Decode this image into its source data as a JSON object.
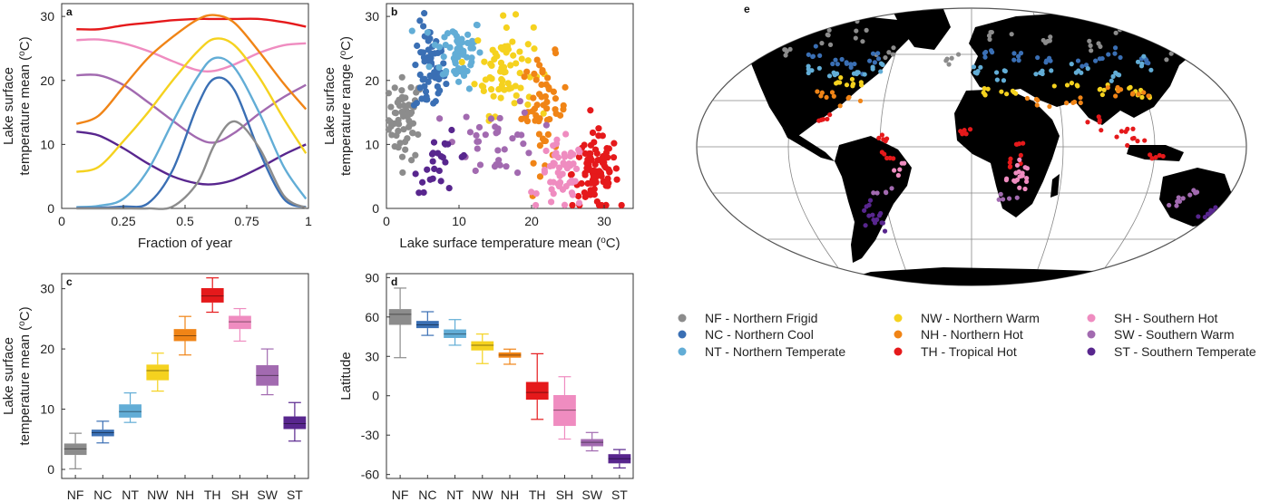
{
  "colors": {
    "NF": "#8c8c8c",
    "NC": "#3a6fb4",
    "NT": "#62add6",
    "NW": "#f5d21f",
    "NH": "#f08416",
    "TH": "#e5191b",
    "SH": "#ef8cc0",
    "SW": "#a26ab0",
    "ST": "#58268e"
  },
  "chart_data": [
    {
      "panel": "a",
      "type": "line",
      "xlabel": "Fraction of year",
      "ylabel_line1": "Lake surface",
      "ylabel_line2": "temperature mean (oC)",
      "xlim": [
        0,
        1
      ],
      "ylim": [
        0,
        32
      ],
      "xticks": [
        "0",
        "0.25",
        "0.5",
        "0.75",
        "1"
      ],
      "yticks": [
        "0",
        "10",
        "20",
        "30"
      ],
      "x": [
        0.06,
        0.15,
        0.25,
        0.35,
        0.45,
        0.55,
        0.62,
        0.7,
        0.8,
        0.9,
        0.99
      ],
      "series": [
        {
          "key": "TH",
          "values": [
            28,
            28,
            28.6,
            29,
            29.4,
            29.6,
            29.6,
            29.6,
            29.6,
            29.1,
            28.4
          ]
        },
        {
          "key": "SH",
          "values": [
            26.3,
            26.4,
            25.8,
            24.6,
            23,
            21.6,
            21.5,
            22.5,
            24.3,
            25.5,
            25.8
          ]
        },
        {
          "key": "SW",
          "values": [
            20.8,
            20.8,
            19.3,
            16.6,
            13.7,
            11,
            10.3,
            11.8,
            14.8,
            17.4,
            19.3
          ]
        },
        {
          "key": "ST",
          "values": [
            12,
            11.4,
            9.4,
            7,
            5,
            3.9,
            3.8,
            4.5,
            6.3,
            8.4,
            10
          ]
        },
        {
          "key": "NH",
          "values": [
            13.2,
            14.5,
            19,
            23.5,
            26.8,
            29.5,
            30.2,
            29,
            24.5,
            19.5,
            15.5
          ]
        },
        {
          "key": "NW",
          "values": [
            5.7,
            6.5,
            10.5,
            15,
            20,
            24.5,
            26.5,
            25.5,
            20.5,
            14,
            8.6
          ]
        },
        {
          "key": "NT",
          "values": [
            0.2,
            0.4,
            1.5,
            6,
            13.5,
            20.5,
            23.5,
            22,
            15,
            6.5,
            1.5
          ]
        },
        {
          "key": "NC",
          "values": [
            0.1,
            0.1,
            0.3,
            0.8,
            6,
            16,
            20.3,
            18.5,
            9,
            1.5,
            0.2
          ]
        },
        {
          "key": "NF",
          "values": [
            0,
            0,
            0,
            0,
            0.3,
            4,
            10,
            13.6,
            9.5,
            2,
            0.1
          ]
        }
      ]
    },
    {
      "panel": "b",
      "type": "scatter",
      "xlabel": "Lake surface temperature mean (oC)",
      "ylabel_line1": "Lake surface",
      "ylabel_line2": "temperature range (oC)",
      "xlim": [
        0,
        34
      ],
      "ylim": [
        0,
        32
      ],
      "xticks": [
        "0",
        "10",
        "20",
        "30"
      ],
      "yticks": [
        "0",
        "10",
        "20",
        "30"
      ],
      "clusters": [
        {
          "key": "NF",
          "cx": 2.6,
          "cy": 14,
          "sx": 1.2,
          "sy": 3.2,
          "n": 60
        },
        {
          "key": "NC",
          "cx": 5.9,
          "cy": 21.5,
          "sx": 1.1,
          "sy": 3.6,
          "n": 60
        },
        {
          "key": "NT",
          "cx": 9.8,
          "cy": 24.5,
          "sx": 1.8,
          "sy": 2.8,
          "n": 60
        },
        {
          "key": "NW",
          "cx": 16.2,
          "cy": 22,
          "sx": 2,
          "sy": 3.6,
          "n": 70
        },
        {
          "key": "NH",
          "cx": 21.8,
          "cy": 15.5,
          "sx": 1.6,
          "sy": 4,
          "n": 55
        },
        {
          "key": "TH",
          "cx": 28.8,
          "cy": 5.5,
          "sx": 1.6,
          "sy": 3,
          "n": 90
        },
        {
          "key": "SH",
          "cx": 24.2,
          "cy": 5,
          "sx": 1.6,
          "sy": 2.7,
          "n": 55
        },
        {
          "key": "SW",
          "cx": 15.3,
          "cy": 11,
          "sx": 2.8,
          "sy": 3,
          "n": 35
        },
        {
          "key": "ST",
          "cx": 7.8,
          "cy": 7,
          "sx": 2,
          "sy": 2.2,
          "n": 25
        }
      ]
    },
    {
      "panel": "c",
      "type": "box",
      "xlabel": "",
      "ylabel_line1": "Lake surface",
      "ylabel_line2": "temperature mean (oC)",
      "ylim": [
        -1.5,
        32.5
      ],
      "yticks": [
        "0",
        "10",
        "20",
        "30"
      ],
      "categories": [
        "NF",
        "NC",
        "NT",
        "NW",
        "NH",
        "TH",
        "SH",
        "SW",
        "ST"
      ],
      "boxes": [
        {
          "min": 0.1,
          "q1": 2.4,
          "med": 3.4,
          "q3": 4.3,
          "max": 6
        },
        {
          "min": 4.4,
          "q1": 5.5,
          "med": 6.1,
          "q3": 6.6,
          "max": 8
        },
        {
          "min": 7.8,
          "q1": 8.6,
          "med": 9.6,
          "q3": 10.8,
          "max": 12.7
        },
        {
          "min": 13,
          "q1": 14.8,
          "med": 16.4,
          "q3": 17.4,
          "max": 19.3
        },
        {
          "min": 19,
          "q1": 21.3,
          "med": 22.2,
          "q3": 23.3,
          "max": 25.4
        },
        {
          "min": 26.1,
          "q1": 27.7,
          "med": 28.8,
          "q3": 30.1,
          "max": 31.8
        },
        {
          "min": 21.3,
          "q1": 23.3,
          "med": 24.5,
          "q3": 25.5,
          "max": 26.7
        },
        {
          "min": 12.4,
          "q1": 13.9,
          "med": 15.6,
          "q3": 17.3,
          "max": 20
        },
        {
          "min": 4.7,
          "q1": 6.7,
          "med": 7.6,
          "q3": 8.8,
          "max": 11.1
        }
      ]
    },
    {
      "panel": "d",
      "type": "box",
      "xlabel": "",
      "ylabel": "Latitude",
      "ylim": [
        -63,
        93
      ],
      "yticks": [
        "90",
        "60",
        "30",
        "0",
        "-30",
        "-60"
      ],
      "categories": [
        "NF",
        "NC",
        "NT",
        "NW",
        "NH",
        "TH",
        "SH",
        "SW",
        "ST"
      ],
      "boxes": [
        {
          "min": 29,
          "q1": 54,
          "med": 62,
          "q3": 66,
          "max": 82
        },
        {
          "min": 46,
          "q1": 51.5,
          "med": 54,
          "q3": 57,
          "max": 64
        },
        {
          "min": 38.5,
          "q1": 44,
          "med": 47,
          "q3": 50.5,
          "max": 58
        },
        {
          "min": 24.5,
          "q1": 34.5,
          "med": 38.5,
          "q3": 41.5,
          "max": 47
        },
        {
          "min": 24,
          "q1": 29,
          "med": 31,
          "q3": 33,
          "max": 35.5
        },
        {
          "min": -18,
          "q1": -3,
          "med": 2.5,
          "q3": 10.5,
          "max": 32
        },
        {
          "min": -33,
          "q1": -23,
          "med": -11,
          "q3": 0.5,
          "max": 14.5
        },
        {
          "min": -42,
          "q1": -38.5,
          "med": -35.5,
          "q3": -33,
          "max": -28
        },
        {
          "min": -55,
          "q1": -51.5,
          "med": -48,
          "q3": -44.5,
          "max": -41
        }
      ]
    },
    {
      "panel": "e",
      "type": "map",
      "projection": "Robinson",
      "lakes": [
        {
          "key": "NF",
          "lat": [
            62,
            70,
            72,
            60,
            56,
            75,
            70,
            66,
            78,
            60
          ],
          "lon": [
            -150,
            -120,
            -95,
            -65,
            -20,
            20,
            60,
            100,
            130,
            160
          ]
        },
        {
          "key": "NC",
          "lat": [
            60,
            55,
            52,
            58,
            62,
            60,
            58,
            55,
            60,
            57
          ],
          "lon": [
            -125,
            -105,
            -90,
            -75,
            10,
            35,
            60,
            90,
            110,
            135
          ]
        },
        {
          "key": "NT",
          "lat": [
            50,
            48,
            47,
            52,
            50,
            46,
            48,
            50,
            45,
            52
          ],
          "lon": [
            -120,
            -100,
            -85,
            -70,
            5,
            25,
            50,
            80,
            105,
            130
          ]
        },
        {
          "key": "NW",
          "lat": [
            42,
            40,
            38,
            36,
            40,
            38,
            36,
            34
          ],
          "lon": [
            -95,
            -80,
            10,
            28,
            70,
            90,
            110,
            120
          ]
        },
        {
          "key": "NH",
          "lat": [
            32,
            30,
            28,
            31,
            34,
            32
          ],
          "lon": [
            -100,
            -85,
            45,
            75,
            100,
            115
          ]
        },
        {
          "key": "TH",
          "lat": [
            20,
            5,
            -5,
            10,
            0,
            -10,
            15,
            5,
            -5,
            10
          ],
          "lon": [
            -100,
            -60,
            -55,
            -5,
            30,
            25,
            80,
            105,
            120,
            100
          ]
        },
        {
          "key": "SH",
          "lat": [
            -15,
            -20,
            -18,
            -25,
            -12
          ],
          "lon": [
            -50,
            30,
            35,
            28,
            32
          ]
        },
        {
          "key": "SW",
          "lat": [
            -30,
            -33,
            -35,
            -32
          ],
          "lon": [
            -60,
            25,
            140,
            150
          ]
        },
        {
          "key": "ST",
          "lat": [
            -40,
            -45,
            -50,
            -42,
            -45
          ],
          "lon": [
            -70,
            -72,
            -70,
            170,
            172
          ]
        }
      ]
    }
  ],
  "legend": [
    {
      "key": "NF",
      "label": "NF - Northern Frigid"
    },
    {
      "key": "NC",
      "label": "NC - Northern Cool"
    },
    {
      "key": "NT",
      "label": "NT - Northern Temperate"
    },
    {
      "key": "NW",
      "label": "NW - Northern Warm"
    },
    {
      "key": "NH",
      "label": "NH - Northern Hot"
    },
    {
      "key": "TH",
      "label": "TH - Tropical Hot"
    },
    {
      "key": "SH",
      "label": "SH - Southern Hot"
    },
    {
      "key": "SW",
      "label": "SW - Southern Warm"
    },
    {
      "key": "ST",
      "label": "ST - Southern Temperate"
    }
  ]
}
